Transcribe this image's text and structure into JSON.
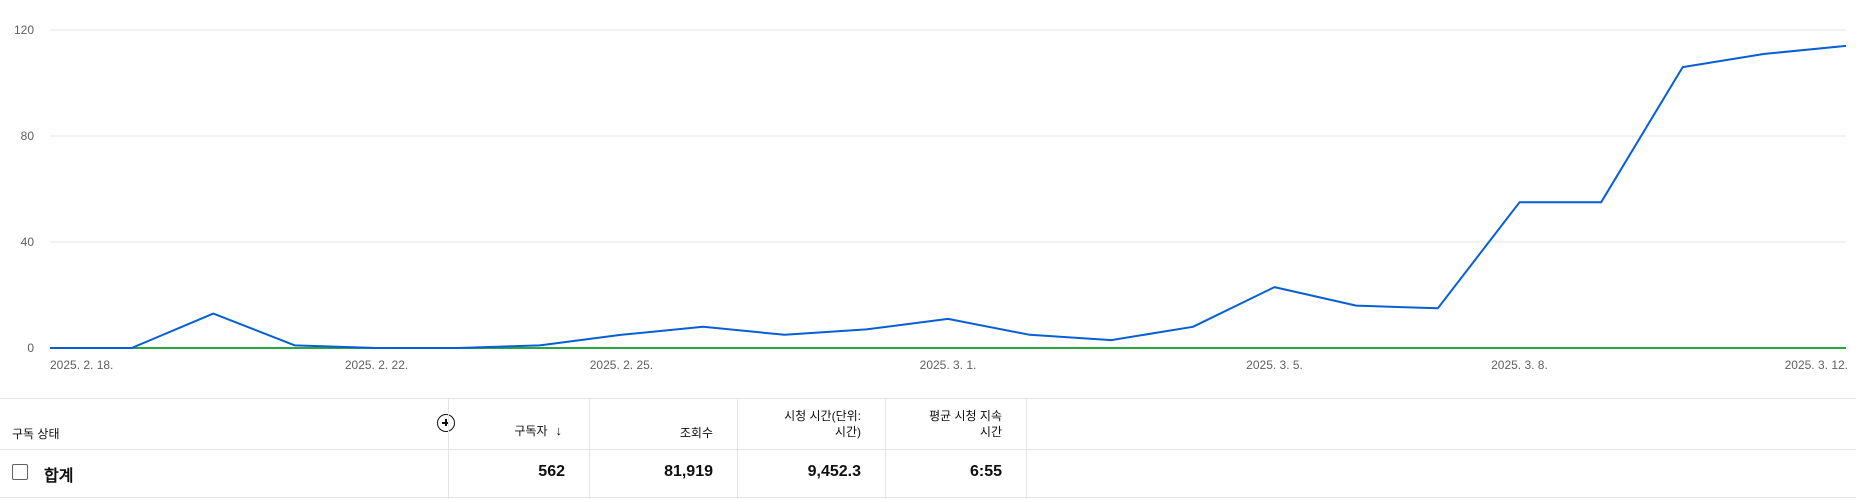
{
  "chart_data": {
    "type": "line",
    "x": [
      "2025. 2. 18.",
      "2025. 2. 19.",
      "2025. 2. 20.",
      "2025. 2. 21.",
      "2025. 2. 22.",
      "2025. 2. 23.",
      "2025. 2. 24.",
      "2025. 2. 25.",
      "2025. 2. 26.",
      "2025. 2. 27.",
      "2025. 2. 28.",
      "2025. 3. 1.",
      "2025. 3. 2.",
      "2025. 3. 3.",
      "2025. 3. 4.",
      "2025. 3. 5.",
      "2025. 3. 6.",
      "2025. 3. 7.",
      "2025. 3. 8.",
      "2025. 3. 9.",
      "2025. 3. 10.",
      "2025. 3. 11.",
      "2025. 3. 12."
    ],
    "x_tick_labels": [
      "2025. 2. 18.",
      "2025. 2. 22.",
      "2025. 2. 25.",
      "2025. 3. 1.",
      "2025. 3. 5.",
      "2025. 3. 8.",
      "2025. 3. 12."
    ],
    "x_tick_indices": [
      0,
      4,
      7,
      11,
      15,
      18,
      22
    ],
    "y_ticks": [
      "0",
      "40",
      "80",
      "120"
    ],
    "ylim": [
      0,
      120
    ],
    "grid": true,
    "series": [
      {
        "color": "#065fd4",
        "values": [
          0,
          0,
          13,
          1,
          0,
          0,
          1,
          5,
          8,
          5,
          7,
          11,
          5,
          3,
          8,
          23,
          16,
          15,
          55,
          55,
          106,
          111,
          114
        ]
      },
      {
        "color": "#2ba640",
        "values": [
          0,
          0,
          0,
          0,
          0,
          0,
          0,
          0,
          0,
          0,
          0,
          0,
          0,
          0,
          0,
          0,
          0,
          0,
          0,
          0,
          0,
          0,
          0
        ]
      }
    ]
  },
  "table": {
    "dimension_header": "구독 상태",
    "columns": [
      {
        "label": "구독자",
        "sort_icon": "arrow-down-icon"
      },
      {
        "label": "조회수"
      },
      {
        "label_line1": "시청 시간(단위:",
        "label_line2": "시간)"
      },
      {
        "label_line1": "평균 시청 지속",
        "label_line2": "시간"
      }
    ],
    "total": {
      "label": "합계",
      "values": [
        "562",
        "81,919",
        "9,452.3",
        "6:55"
      ]
    }
  }
}
